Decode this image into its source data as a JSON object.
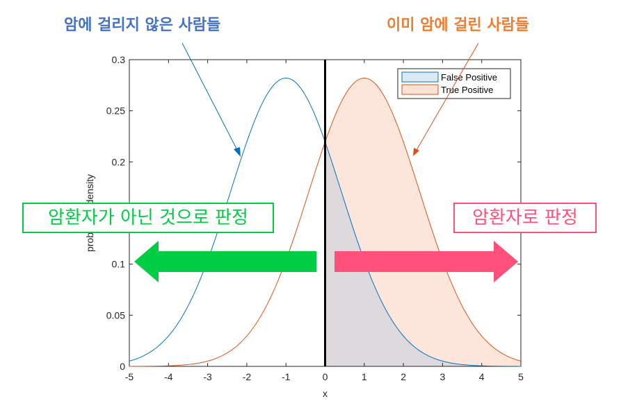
{
  "colors": {
    "blue": "#0072BD",
    "orange": "#D95319",
    "blue_title": "#4472C4",
    "orange_title": "#ED7D31",
    "green": "#00CC44",
    "pink": "#FF4F7B",
    "fp_fill": "#DDD9DD",
    "tp_fill": "#FCE6DC",
    "legend_fp": "#DCEAF6",
    "legend_tp": "#FCE1D5"
  },
  "annotations": {
    "healthy_label": "암에 걸리지 않은 사람들",
    "cancer_label": "이미 암에 걸린 사람들",
    "negative_decision": "암환자가 아닌 것으로 판정",
    "positive_decision": "암환자로 판정"
  },
  "chart_data": {
    "type": "line",
    "xlabel": "x",
    "ylabel": "probability density",
    "xlim": [
      -5,
      5
    ],
    "ylim": [
      0,
      0.3
    ],
    "xticks": [
      "-5",
      "-4",
      "-3",
      "-2",
      "-1",
      "0",
      "1",
      "2",
      "3",
      "4",
      "5"
    ],
    "yticks": [
      "0",
      "0.05",
      "0.1",
      "0.15",
      "0.2",
      "0.25",
      "0.3"
    ],
    "threshold_x": 0,
    "legend_position": "top-right",
    "series": [
      {
        "name": "False Positive",
        "distribution": "normal",
        "mean": -1,
        "std": 1.414,
        "peak": 0.282,
        "shaded_region": [
          0,
          5
        ]
      },
      {
        "name": "True Positive",
        "distribution": "normal",
        "mean": 1,
        "std": 1.414,
        "peak": 0.282,
        "shaded_region": [
          0,
          5
        ]
      }
    ]
  }
}
